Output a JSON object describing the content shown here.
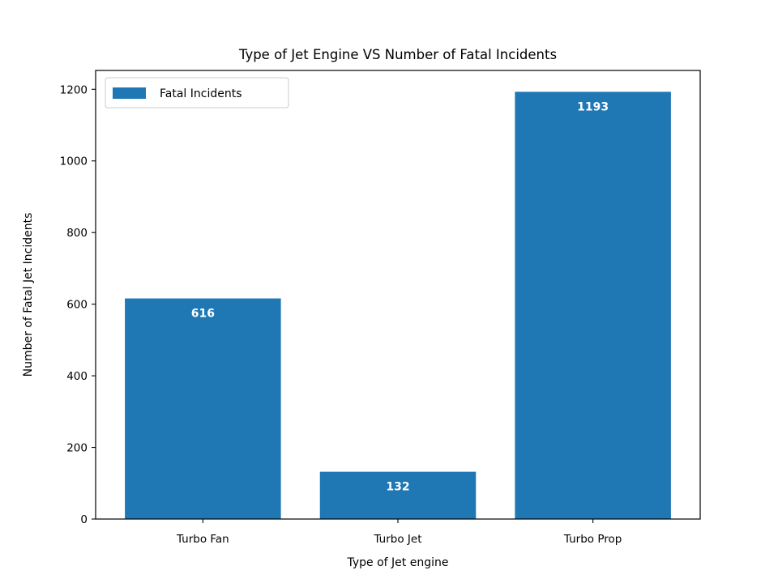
{
  "chart_data": {
    "type": "bar",
    "title": "Type of Jet Engine VS Number of Fatal Incidents",
    "xlabel": "Type of Jet engine",
    "ylabel": "Number of Fatal Jet Incidents",
    "categories": [
      "Turbo Fan",
      "Turbo Jet",
      "Turbo Prop"
    ],
    "series": [
      {
        "name": "Fatal Incidents",
        "values": [
          616,
          132,
          1193
        ],
        "color": "#1f77b4"
      }
    ],
    "data_labels": [
      "616",
      "132",
      "1193"
    ],
    "ylim": [
      0,
      1252.65
    ],
    "yticks": [
      0,
      200,
      400,
      600,
      800,
      1000,
      1200
    ],
    "grid": false,
    "legend_position": "top-left"
  }
}
